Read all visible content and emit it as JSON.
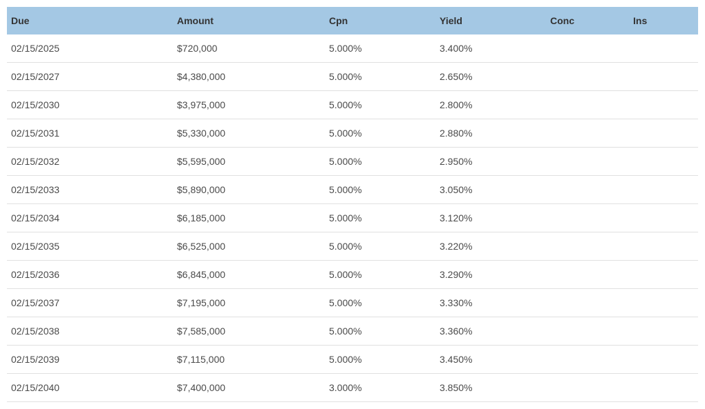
{
  "colors": {
    "header_bg": "#a4c8e4",
    "border": "#e0e0e0",
    "text_header": "#333333",
    "text_body": "#4a4a4a"
  },
  "table": {
    "columns": [
      {
        "key": "due",
        "label": "Due"
      },
      {
        "key": "amount",
        "label": "Amount"
      },
      {
        "key": "cpn",
        "label": "Cpn"
      },
      {
        "key": "yield",
        "label": "Yield"
      },
      {
        "key": "conc",
        "label": "Conc"
      },
      {
        "key": "ins",
        "label": "Ins"
      }
    ],
    "rows": [
      {
        "due": "02/15/2025",
        "amount": "$720,000",
        "cpn": "5.000%",
        "yield": "3.400%",
        "conc": "",
        "ins": ""
      },
      {
        "due": "02/15/2027",
        "amount": "$4,380,000",
        "cpn": "5.000%",
        "yield": "2.650%",
        "conc": "",
        "ins": ""
      },
      {
        "due": "02/15/2030",
        "amount": "$3,975,000",
        "cpn": "5.000%",
        "yield": "2.800%",
        "conc": "",
        "ins": ""
      },
      {
        "due": "02/15/2031",
        "amount": "$5,330,000",
        "cpn": "5.000%",
        "yield": "2.880%",
        "conc": "",
        "ins": ""
      },
      {
        "due": "02/15/2032",
        "amount": "$5,595,000",
        "cpn": "5.000%",
        "yield": "2.950%",
        "conc": "",
        "ins": ""
      },
      {
        "due": "02/15/2033",
        "amount": "$5,890,000",
        "cpn": "5.000%",
        "yield": "3.050%",
        "conc": "",
        "ins": ""
      },
      {
        "due": "02/15/2034",
        "amount": "$6,185,000",
        "cpn": "5.000%",
        "yield": "3.120%",
        "conc": "",
        "ins": ""
      },
      {
        "due": "02/15/2035",
        "amount": "$6,525,000",
        "cpn": "5.000%",
        "yield": "3.220%",
        "conc": "",
        "ins": ""
      },
      {
        "due": "02/15/2036",
        "amount": "$6,845,000",
        "cpn": "5.000%",
        "yield": "3.290%",
        "conc": "",
        "ins": ""
      },
      {
        "due": "02/15/2037",
        "amount": "$7,195,000",
        "cpn": "5.000%",
        "yield": "3.330%",
        "conc": "",
        "ins": ""
      },
      {
        "due": "02/15/2038",
        "amount": "$7,585,000",
        "cpn": "5.000%",
        "yield": "3.360%",
        "conc": "",
        "ins": ""
      },
      {
        "due": "02/15/2039",
        "amount": "$7,115,000",
        "cpn": "5.000%",
        "yield": "3.450%",
        "conc": "",
        "ins": ""
      },
      {
        "due": "02/15/2040",
        "amount": "$7,400,000",
        "cpn": "3.000%",
        "yield": "3.850%",
        "conc": "",
        "ins": ""
      }
    ]
  }
}
